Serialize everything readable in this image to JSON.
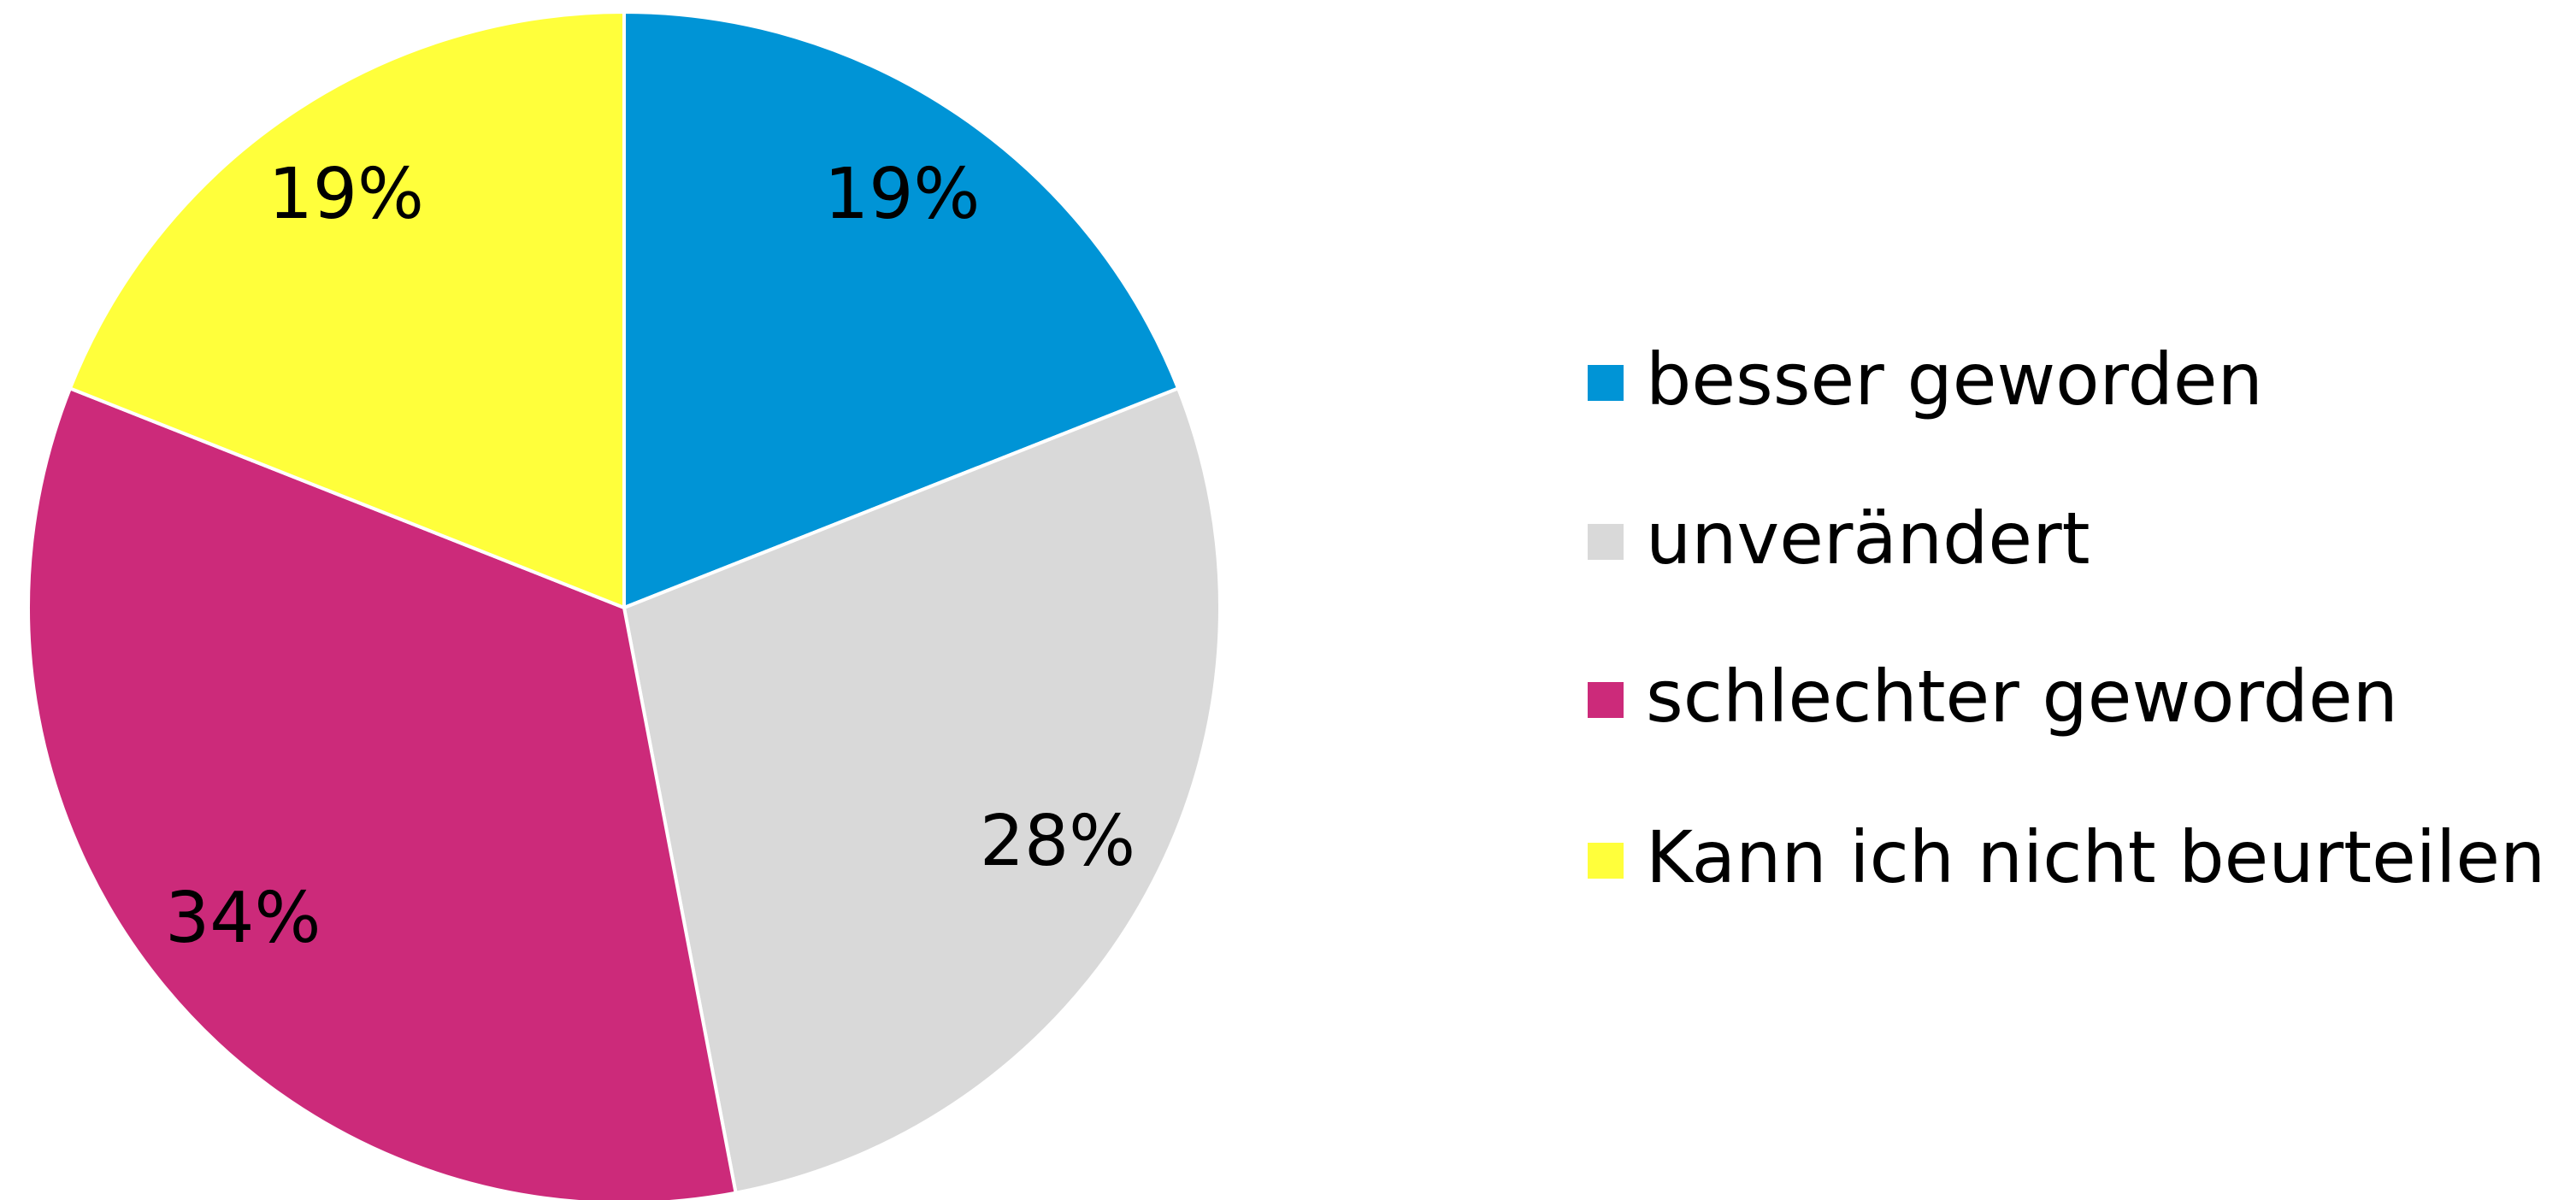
{
  "chart_data": {
    "type": "pie",
    "categories": [
      "besser geworden",
      "unverändert",
      "schlechter geworden",
      "Kann ich nicht beurteilen"
    ],
    "values": [
      19,
      28,
      34,
      19
    ],
    "value_labels": [
      "19%",
      "28%",
      "34%",
      "19%"
    ],
    "colors": [
      "#0094d6",
      "#d9d9d9",
      "#cc2a7a",
      "#ffff3b"
    ],
    "legend": "right"
  }
}
